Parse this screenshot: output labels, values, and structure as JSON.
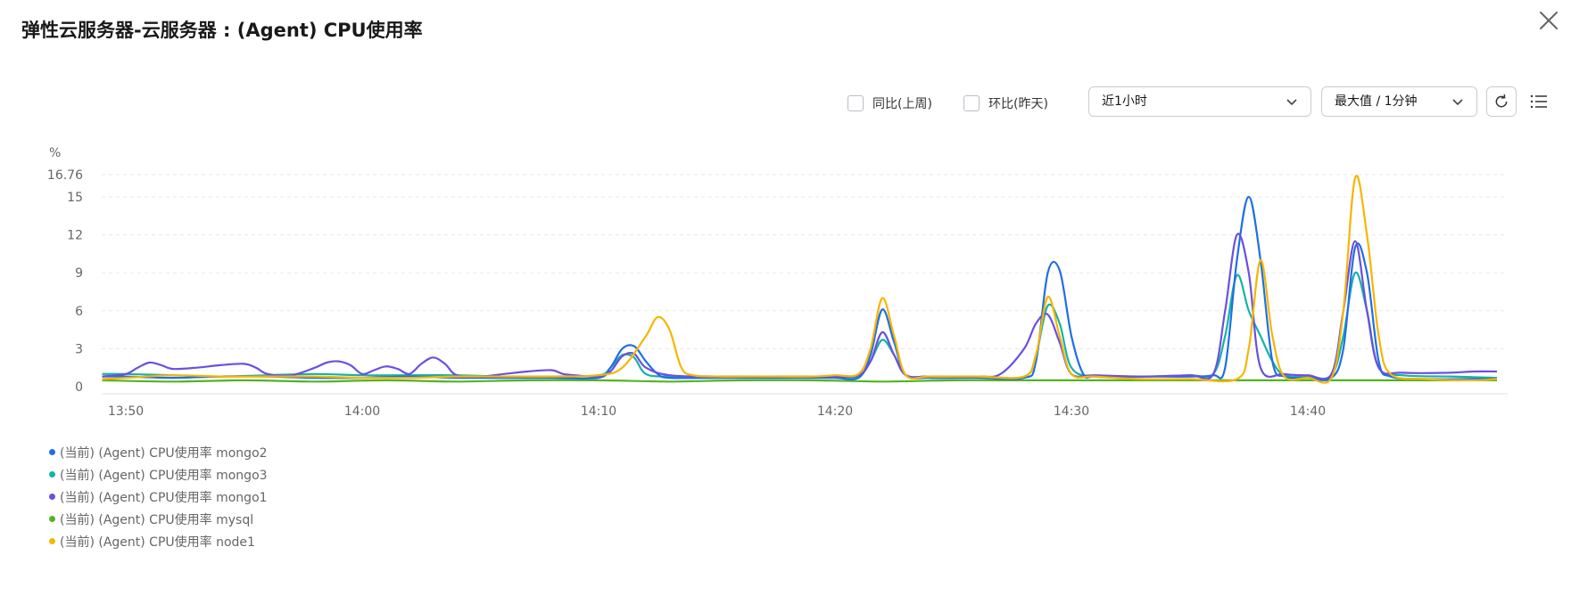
{
  "title": "弹性云服务器-云服务器 : (Agent) CPU使用率",
  "toolbar": {
    "yoy_label": "同比(上周)",
    "mom_label": "环比(昨天)",
    "time_range": "近1小时",
    "aggregation": "最大值 / 1分钟"
  },
  "icons": {
    "close": "close-icon",
    "refresh": "refresh-icon",
    "list": "list-icon",
    "chevron": "chevron-down-icon"
  },
  "chart_data": {
    "type": "line",
    "ylabel": "%",
    "ylim": [
      0,
      16.76
    ],
    "y_ticks": [
      "0",
      "3",
      "6",
      "9",
      "12",
      "15",
      "16.76"
    ],
    "x_ticks": [
      "13:50",
      "14:00",
      "14:10",
      "14:20",
      "14:30",
      "14:40"
    ],
    "xlim": [
      -1,
      59
    ],
    "grid": true,
    "legend_position": "bottom-left",
    "series": [
      {
        "name": "(当前) (Agent) CPU使用率 mongo2",
        "color": "#1f6fe5",
        "points": [
          [
            -1,
            0.8
          ],
          [
            0,
            0.8
          ],
          [
            2,
            0.7
          ],
          [
            4,
            0.8
          ],
          [
            6,
            0.8
          ],
          [
            8,
            0.7
          ],
          [
            10,
            0.7
          ],
          [
            12,
            0.8
          ],
          [
            14,
            0.7
          ],
          [
            16,
            0.7
          ],
          [
            18,
            0.7
          ],
          [
            20,
            0.7
          ],
          [
            20.5,
            1.5
          ],
          [
            21,
            3.0
          ],
          [
            21.5,
            3.2
          ],
          [
            22,
            2.0
          ],
          [
            22.5,
            1.0
          ],
          [
            23,
            0.7
          ],
          [
            25,
            0.7
          ],
          [
            27,
            0.7
          ],
          [
            29,
            0.7
          ],
          [
            30,
            0.7
          ],
          [
            31,
            0.7
          ],
          [
            31.5,
            2.5
          ],
          [
            32,
            6.1
          ],
          [
            32.5,
            3.5
          ],
          [
            33,
            0.9
          ],
          [
            34,
            0.7
          ],
          [
            36,
            0.7
          ],
          [
            38,
            0.7
          ],
          [
            38.5,
            2.0
          ],
          [
            39,
            9.0
          ],
          [
            39.5,
            9.2
          ],
          [
            40,
            4.0
          ],
          [
            40.5,
            1.0
          ],
          [
            41,
            0.8
          ],
          [
            43,
            0.8
          ],
          [
            45,
            0.8
          ],
          [
            46,
            0.9
          ],
          [
            46.5,
            1.5
          ],
          [
            47,
            10.0
          ],
          [
            47.5,
            15.0
          ],
          [
            48,
            10.0
          ],
          [
            48.5,
            2.0
          ],
          [
            49,
            0.8
          ],
          [
            50,
            0.7
          ],
          [
            51,
            0.7
          ],
          [
            51.5,
            3.0
          ],
          [
            52,
            11.0
          ],
          [
            52.5,
            9.0
          ],
          [
            53,
            2.0
          ],
          [
            53.5,
            0.8
          ],
          [
            55,
            0.6
          ],
          [
            57,
            0.6
          ],
          [
            58,
            0.6
          ]
        ]
      },
      {
        "name": "(当前) (Agent) CPU使用率 mongo3",
        "color": "#14b3a7",
        "points": [
          [
            -1,
            1.0
          ],
          [
            0,
            1.0
          ],
          [
            2,
            0.9
          ],
          [
            4,
            0.8
          ],
          [
            6,
            0.9
          ],
          [
            8,
            1.0
          ],
          [
            10,
            0.9
          ],
          [
            12,
            0.9
          ],
          [
            14,
            0.9
          ],
          [
            16,
            0.8
          ],
          [
            18,
            0.8
          ],
          [
            20,
            0.9
          ],
          [
            20.5,
            1.5
          ],
          [
            21,
            2.5
          ],
          [
            21.5,
            2.3
          ],
          [
            22,
            1.0
          ],
          [
            23,
            0.8
          ],
          [
            25,
            0.8
          ],
          [
            27,
            0.8
          ],
          [
            29,
            0.8
          ],
          [
            30,
            0.8
          ],
          [
            31,
            0.8
          ],
          [
            31.5,
            2.0
          ],
          [
            32,
            3.7
          ],
          [
            32.5,
            2.5
          ],
          [
            33,
            0.9
          ],
          [
            34,
            0.8
          ],
          [
            36,
            0.8
          ],
          [
            38,
            0.8
          ],
          [
            38.5,
            2.5
          ],
          [
            39,
            6.4
          ],
          [
            39.5,
            5.0
          ],
          [
            40,
            1.5
          ],
          [
            41,
            0.8
          ],
          [
            43,
            0.8
          ],
          [
            45,
            0.9
          ],
          [
            46,
            1.0
          ],
          [
            46.5,
            4.0
          ],
          [
            47,
            8.8
          ],
          [
            47.5,
            6.0
          ],
          [
            48,
            4.0
          ],
          [
            48.5,
            2.0
          ],
          [
            49,
            0.9
          ],
          [
            50,
            0.8
          ],
          [
            51,
            0.9
          ],
          [
            51.5,
            4.0
          ],
          [
            52,
            9.0
          ],
          [
            52.5,
            6.0
          ],
          [
            53,
            1.5
          ],
          [
            54,
            0.9
          ],
          [
            56,
            0.8
          ],
          [
            58,
            0.7
          ]
        ]
      },
      {
        "name": "(当前) (Agent) CPU使用率 mongo1",
        "color": "#6b4fe0",
        "points": [
          [
            -1,
            0.8
          ],
          [
            0,
            1.0
          ],
          [
            0.5,
            1.5
          ],
          [
            1,
            1.9
          ],
          [
            1.5,
            1.7
          ],
          [
            2,
            1.4
          ],
          [
            3,
            1.5
          ],
          [
            4,
            1.7
          ],
          [
            5,
            1.8
          ],
          [
            5.5,
            1.5
          ],
          [
            6,
            1.0
          ],
          [
            7,
            0.9
          ],
          [
            8,
            1.5
          ],
          [
            8.5,
            1.9
          ],
          [
            9,
            2.0
          ],
          [
            9.5,
            1.7
          ],
          [
            10,
            1.0
          ],
          [
            10.5,
            1.3
          ],
          [
            11,
            1.6
          ],
          [
            11.5,
            1.4
          ],
          [
            12,
            1.0
          ],
          [
            12.5,
            1.8
          ],
          [
            13,
            2.3
          ],
          [
            13.5,
            1.8
          ],
          [
            14,
            0.9
          ],
          [
            15,
            0.8
          ],
          [
            16,
            1.0
          ],
          [
            17,
            1.2
          ],
          [
            18,
            1.3
          ],
          [
            18.5,
            1.0
          ],
          [
            19,
            0.9
          ],
          [
            20,
            0.8
          ],
          [
            20.5,
            1.2
          ],
          [
            21,
            2.4
          ],
          [
            21.5,
            2.6
          ],
          [
            22,
            1.5
          ],
          [
            23,
            0.9
          ],
          [
            25,
            0.8
          ],
          [
            27,
            0.8
          ],
          [
            29,
            0.8
          ],
          [
            30,
            0.8
          ],
          [
            31,
            0.9
          ],
          [
            31.5,
            2.0
          ],
          [
            32,
            4.3
          ],
          [
            32.5,
            2.5
          ],
          [
            33,
            0.9
          ],
          [
            34,
            0.8
          ],
          [
            36,
            0.8
          ],
          [
            37,
            1.0
          ],
          [
            38,
            3.0
          ],
          [
            38.5,
            5.0
          ],
          [
            39,
            5.7
          ],
          [
            39.5,
            3.5
          ],
          [
            40,
            1.0
          ],
          [
            41,
            0.9
          ],
          [
            43,
            0.8
          ],
          [
            45,
            0.9
          ],
          [
            46,
            1.0
          ],
          [
            46.5,
            6.0
          ],
          [
            47,
            12.0
          ],
          [
            47.5,
            9.0
          ],
          [
            48,
            1.5
          ],
          [
            49,
            1.0
          ],
          [
            50,
            0.9
          ],
          [
            51,
            1.0
          ],
          [
            51.5,
            6.0
          ],
          [
            52,
            11.5
          ],
          [
            52.5,
            6.0
          ],
          [
            53,
            1.5
          ],
          [
            54,
            1.1
          ],
          [
            56,
            1.1
          ],
          [
            57,
            1.2
          ],
          [
            58,
            1.2
          ]
        ]
      },
      {
        "name": "(当前) (Agent) CPU使用率 mysql",
        "color": "#52b51f",
        "points": [
          [
            -1,
            0.5
          ],
          [
            2,
            0.4
          ],
          [
            5,
            0.5
          ],
          [
            8,
            0.4
          ],
          [
            11,
            0.5
          ],
          [
            14,
            0.4
          ],
          [
            17,
            0.5
          ],
          [
            20,
            0.5
          ],
          [
            23,
            0.4
          ],
          [
            26,
            0.5
          ],
          [
            29,
            0.5
          ],
          [
            32,
            0.4
          ],
          [
            35,
            0.5
          ],
          [
            38,
            0.5
          ],
          [
            41,
            0.5
          ],
          [
            44,
            0.5
          ],
          [
            47,
            0.5
          ],
          [
            50,
            0.5
          ],
          [
            53,
            0.5
          ],
          [
            56,
            0.5
          ],
          [
            58,
            0.5
          ]
        ]
      },
      {
        "name": "(当前) (Agent) CPU使用率 node1",
        "color": "#f7b500",
        "points": [
          [
            -1,
            0.6
          ],
          [
            0,
            0.7
          ],
          [
            2,
            0.9
          ],
          [
            4,
            0.8
          ],
          [
            6,
            0.8
          ],
          [
            8,
            0.8
          ],
          [
            10,
            0.7
          ],
          [
            12,
            0.7
          ],
          [
            14,
            0.8
          ],
          [
            16,
            0.8
          ],
          [
            18,
            0.8
          ],
          [
            20,
            0.9
          ],
          [
            21,
            1.5
          ],
          [
            22,
            4.0
          ],
          [
            22.5,
            5.5
          ],
          [
            23,
            4.5
          ],
          [
            23.5,
            1.5
          ],
          [
            24,
            0.9
          ],
          [
            25,
            0.8
          ],
          [
            27,
            0.8
          ],
          [
            29,
            0.8
          ],
          [
            30,
            0.9
          ],
          [
            31,
            1.0
          ],
          [
            31.5,
            3.0
          ],
          [
            32,
            7.0
          ],
          [
            32.5,
            4.0
          ],
          [
            33,
            0.9
          ],
          [
            34,
            0.8
          ],
          [
            36,
            0.8
          ],
          [
            38,
            0.8
          ],
          [
            38.5,
            2.5
          ],
          [
            39,
            7.1
          ],
          [
            39.5,
            4.0
          ],
          [
            40,
            1.0
          ],
          [
            41,
            0.8
          ],
          [
            43,
            0.6
          ],
          [
            45,
            0.6
          ],
          [
            47,
            0.6
          ],
          [
            47.5,
            3.0
          ],
          [
            48,
            10.0
          ],
          [
            48.5,
            4.0
          ],
          [
            49,
            0.8
          ],
          [
            50,
            0.7
          ],
          [
            51,
            0.7
          ],
          [
            51.5,
            6.0
          ],
          [
            52,
            16.5
          ],
          [
            52.5,
            12.0
          ],
          [
            53,
            4.0
          ],
          [
            53.5,
            1.0
          ],
          [
            55,
            0.6
          ],
          [
            57,
            0.5
          ],
          [
            58,
            0.6
          ]
        ]
      }
    ]
  }
}
